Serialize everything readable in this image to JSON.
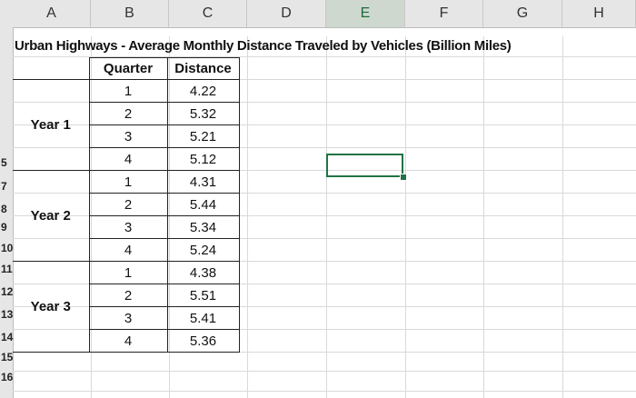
{
  "columns": [
    "A",
    "B",
    "C",
    "D",
    "E",
    "F",
    "G",
    "H"
  ],
  "selected_column": "E",
  "rows": [
    "",
    "",
    "",
    "",
    "5",
    "7",
    "8",
    "9",
    "10",
    "11",
    "12",
    "13",
    "14",
    "15",
    "16"
  ],
  "title": "Urban Highways - Average Monthly Distance Traveled by Vehicles (Billion Miles)",
  "table": {
    "headers": {
      "quarter": "Quarter",
      "distance": "Distance"
    },
    "years": [
      {
        "label": "Year 1",
        "rows": [
          {
            "quarter": "1",
            "distance": "4.22"
          },
          {
            "quarter": "2",
            "distance": "5.32"
          },
          {
            "quarter": "3",
            "distance": "5.21"
          },
          {
            "quarter": "4",
            "distance": "5.12"
          }
        ]
      },
      {
        "label": "Year 2",
        "rows": [
          {
            "quarter": "1",
            "distance": "4.31"
          },
          {
            "quarter": "2",
            "distance": "5.44"
          },
          {
            "quarter": "3",
            "distance": "5.34"
          },
          {
            "quarter": "4",
            "distance": "5.24"
          }
        ]
      },
      {
        "label": "Year 3",
        "rows": [
          {
            "quarter": "1",
            "distance": "4.38"
          },
          {
            "quarter": "2",
            "distance": "5.51"
          },
          {
            "quarter": "3",
            "distance": "5.41"
          },
          {
            "quarter": "4",
            "distance": "5.36"
          }
        ]
      }
    ]
  },
  "colors": {
    "selection": "#217346",
    "header_bg": "#e6e6e6"
  }
}
